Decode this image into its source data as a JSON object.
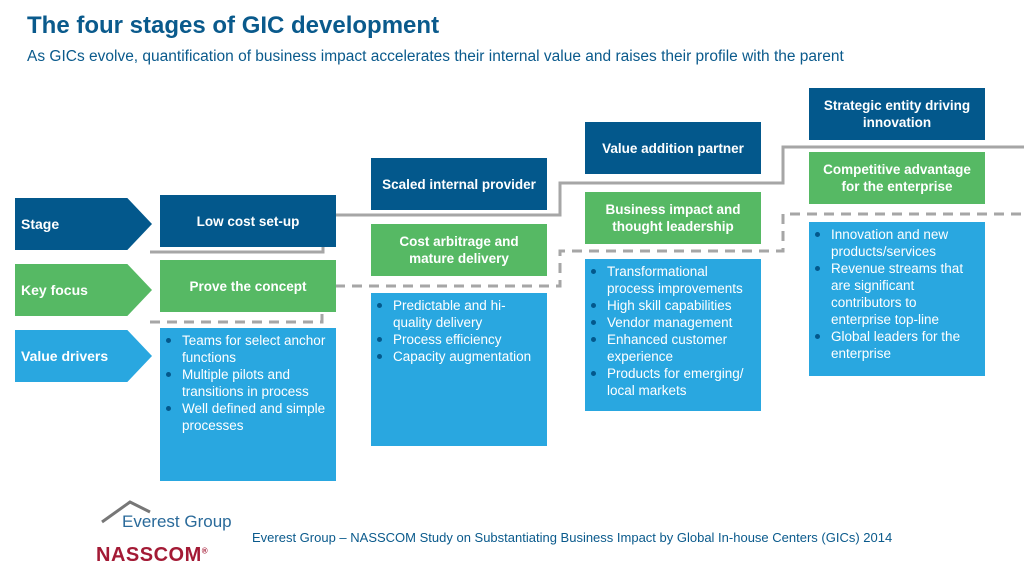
{
  "title": "The four stages of GIC development",
  "subtitle": "As GICs evolve, quantification of business impact accelerates their internal value and raises their profile with the parent",
  "row_labels": [
    "Stage",
    "Key focus",
    "Value drivers"
  ],
  "stages": [
    {
      "stage": "Low cost set-up",
      "focus": "Prove the concept",
      "drivers": [
        "Teams for select anchor functions",
        "Multiple pilots and transitions in process",
        "Well defined and simple processes"
      ]
    },
    {
      "stage": "Scaled internal provider",
      "focus": "Cost arbitrage and mature delivery",
      "drivers": [
        "Predictable and hi-quality delivery",
        "Process efficiency",
        "Capacity augmentation"
      ]
    },
    {
      "stage": "Value addition partner",
      "focus": "Business impact and thought leadership",
      "drivers": [
        "Transformational process improvements",
        "High skill capabilities",
        "Vendor management",
        "Enhanced customer experience",
        "Products for emerging/ local markets"
      ]
    },
    {
      "stage": "Strategic entity driving innovation",
      "focus": "Competitive advantage for the enterprise",
      "drivers": [
        "Innovation and new products/services",
        "Revenue streams that are significant contributors to enterprise top-line",
        "Global leaders for the enterprise"
      ]
    }
  ],
  "footer": "Everest Group – NASSCOM Study on Substantiating Business Impact by Global In-house Centers (GICs) 2014",
  "logos": {
    "everest": "Everest Group",
    "nasscom": "NASSCOM"
  },
  "colors": {
    "stage": "#03588c",
    "focus": "#56b964",
    "drivers": "#29a7e0"
  }
}
